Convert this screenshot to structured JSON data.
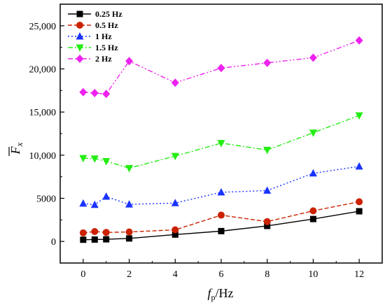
{
  "chart_data": {
    "type": "line",
    "xlabel": "f_p/Hz",
    "ylabel": "F̄_x",
    "xlim": [
      -1,
      13
    ],
    "ylim": [
      -2500,
      27500
    ],
    "xticks": [
      0,
      2,
      4,
      6,
      8,
      10,
      12
    ],
    "yticks": [
      0,
      5000,
      10000,
      15000,
      20000,
      25000
    ],
    "ytick_labels": [
      "0",
      "5000",
      "10,000",
      "15,000",
      "20,000",
      "25,000"
    ],
    "legend_position": "top-left",
    "grid": false,
    "series": [
      {
        "name": "0.25 Hz",
        "color": "#000000",
        "marker": "square",
        "dash": "solid",
        "x": [
          0,
          0.5,
          1,
          2,
          4,
          6,
          8,
          10,
          12
        ],
        "y": [
          200,
          220,
          250,
          350,
          800,
          1200,
          1800,
          2600,
          3500
        ]
      },
      {
        "name": "0.5 Hz",
        "color": "#cc2200",
        "marker": "circle",
        "dash": "dashed",
        "x": [
          0,
          0.5,
          1,
          2,
          4,
          6,
          8,
          10,
          12
        ],
        "y": [
          1000,
          1150,
          1050,
          1100,
          1350,
          3050,
          2300,
          3550,
          4600
        ]
      },
      {
        "name": "1 Hz",
        "color": "#1a33ff",
        "marker": "triangle",
        "dash": "dotted",
        "x": [
          0,
          0.5,
          1,
          2,
          4,
          6,
          8,
          10,
          12
        ],
        "y": [
          4400,
          4250,
          5200,
          4300,
          4450,
          5700,
          5900,
          7900,
          8700
        ]
      },
      {
        "name": "1.5 Hz",
        "color": "#22ee11",
        "marker": "triangle-down",
        "dash": "dashdot",
        "x": [
          0,
          0.5,
          1,
          2,
          4,
          6,
          8,
          10,
          12
        ],
        "y": [
          9650,
          9600,
          9300,
          8500,
          9900,
          11400,
          10600,
          12600,
          14600
        ]
      },
      {
        "name": "2 Hz",
        "color": "#ee22ee",
        "marker": "diamond",
        "dash": "dashdotdot",
        "x": [
          0,
          0.5,
          1,
          2,
          4,
          6,
          8,
          10,
          12
        ],
        "y": [
          17300,
          17200,
          17100,
          20900,
          18400,
          20100,
          20700,
          21300,
          23300
        ]
      }
    ]
  }
}
